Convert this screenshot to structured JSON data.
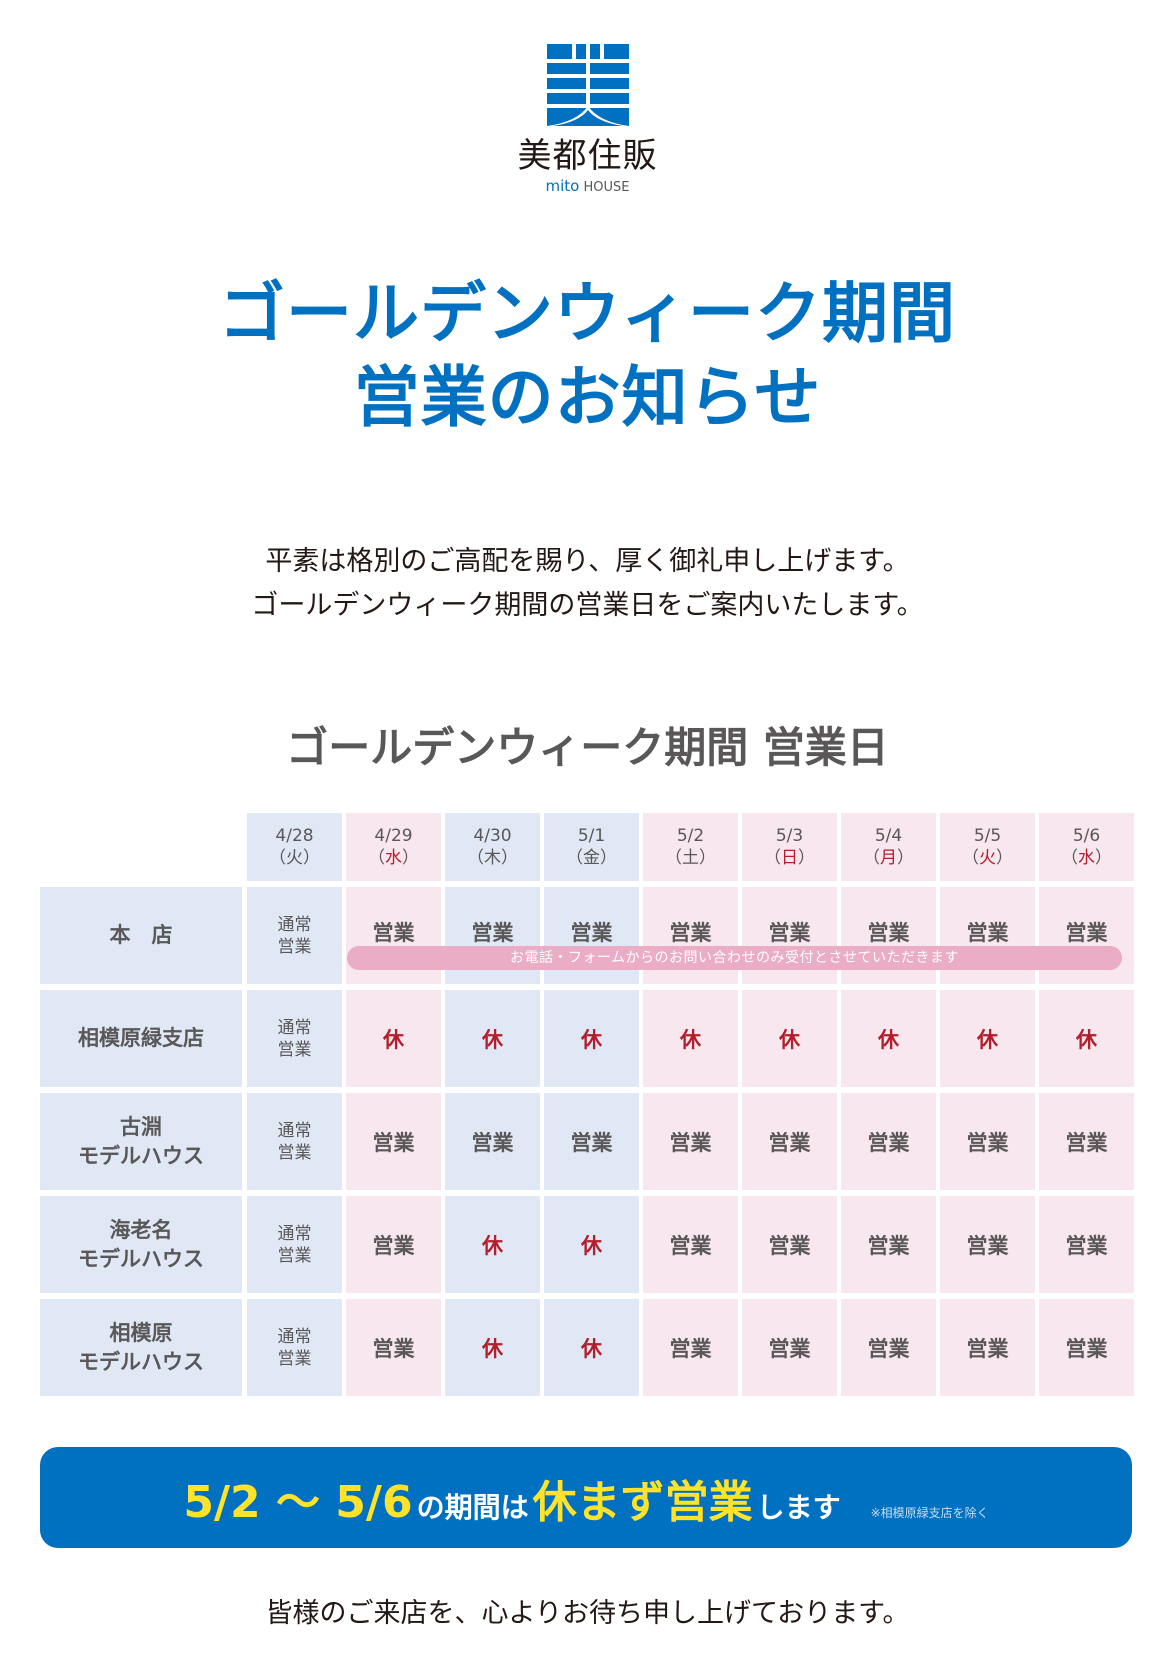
{
  "logo": {
    "company_jp": "美都住販",
    "brand_en_a": "mito",
    "brand_en_b": "HOUSE",
    "mark_color": "#0070c0"
  },
  "title": {
    "line1": "ゴールデンウィーク期間",
    "line2": "営業のお知らせ"
  },
  "greeting": {
    "line1": "平素は格別のご高配を賜り、厚く御礼申し上げます。",
    "line2": "ゴールデンウィーク期間の営業日をご案内いたします。"
  },
  "schedule": {
    "title": "ゴールデンウィーク期間 営業日",
    "columns": [
      {
        "date": "4/28",
        "dow": "（火）",
        "holiday": false,
        "bg": "blue"
      },
      {
        "date": "4/29",
        "dow": "（水）",
        "holiday": true,
        "bg": "pink"
      },
      {
        "date": "4/30",
        "dow": "（木）",
        "holiday": false,
        "bg": "blue"
      },
      {
        "date": "5/1",
        "dow": "（金）",
        "holiday": false,
        "bg": "blue"
      },
      {
        "date": "5/2",
        "dow": "（土）",
        "holiday": false,
        "bg": "pink"
      },
      {
        "date": "5/3",
        "dow": "（日）",
        "holiday": true,
        "bg": "pink"
      },
      {
        "date": "5/4",
        "dow": "（月）",
        "holiday": true,
        "bg": "pink"
      },
      {
        "date": "5/5",
        "dow": "（火）",
        "holiday": true,
        "bg": "pink"
      },
      {
        "date": "5/6",
        "dow": "（水）",
        "holiday": true,
        "bg": "pink"
      }
    ],
    "dow_parts": [
      {
        "open": "（",
        "kanji": "火",
        "close": "）"
      },
      {
        "open": "（",
        "kanji": "水",
        "close": "）"
      },
      {
        "open": "（",
        "kanji": "木",
        "close": "）"
      },
      {
        "open": "（",
        "kanji": "金",
        "close": "）"
      },
      {
        "open": "（",
        "kanji": "土",
        "close": "）"
      },
      {
        "open": "（",
        "kanji": "日",
        "close": "）"
      },
      {
        "open": "（",
        "kanji": "月",
        "close": "）"
      },
      {
        "open": "（",
        "kanji": "火",
        "close": "）"
      },
      {
        "open": "（",
        "kanji": "水",
        "close": "）"
      }
    ],
    "normal_line1": "通常",
    "normal_line2": "営業",
    "rows": [
      {
        "name_line1": "本　店",
        "name_line2": "",
        "cells": [
          "営業",
          "営業",
          "営業",
          "営業",
          "営業",
          "営業",
          "営業",
          "営業"
        ]
      },
      {
        "name_line1": "相模原緑支店",
        "name_line2": "",
        "cells": [
          "休",
          "休",
          "休",
          "休",
          "休",
          "休",
          "休",
          "休"
        ]
      },
      {
        "name_line1": "古淵",
        "name_line2": "モデルハウス",
        "cells": [
          "営業",
          "営業",
          "営業",
          "営業",
          "営業",
          "営業",
          "営業",
          "営業"
        ]
      },
      {
        "name_line1": "海老名",
        "name_line2": "モデルハウス",
        "cells": [
          "営業",
          "休",
          "休",
          "営業",
          "営業",
          "営業",
          "営業",
          "営業"
        ]
      },
      {
        "name_line1": "相模原",
        "name_line2": "モデルハウス",
        "cells": [
          "営業",
          "休",
          "休",
          "営業",
          "営業",
          "営業",
          "営業",
          "営業"
        ]
      }
    ],
    "honten_notice": "お電話・フォームからのお問い合わせのみ受付とさせていただきます",
    "colors": {
      "blue_cell": "#dfe8f4",
      "pink_cell": "#f8e7ee",
      "closed_text": "#b21e2b",
      "notice_pill": "#ebacc5"
    }
  },
  "banner": {
    "range": "5/2 〜 5/6",
    "mid": "の期間は",
    "highlight": "休まず営業",
    "tail": "します",
    "note": "※相模原緑支店を除く",
    "bg_color": "#0070c0",
    "highlight_color": "#ffe32b"
  },
  "closing": "皆様のご来店を、心よりお待ち申し上げております。"
}
